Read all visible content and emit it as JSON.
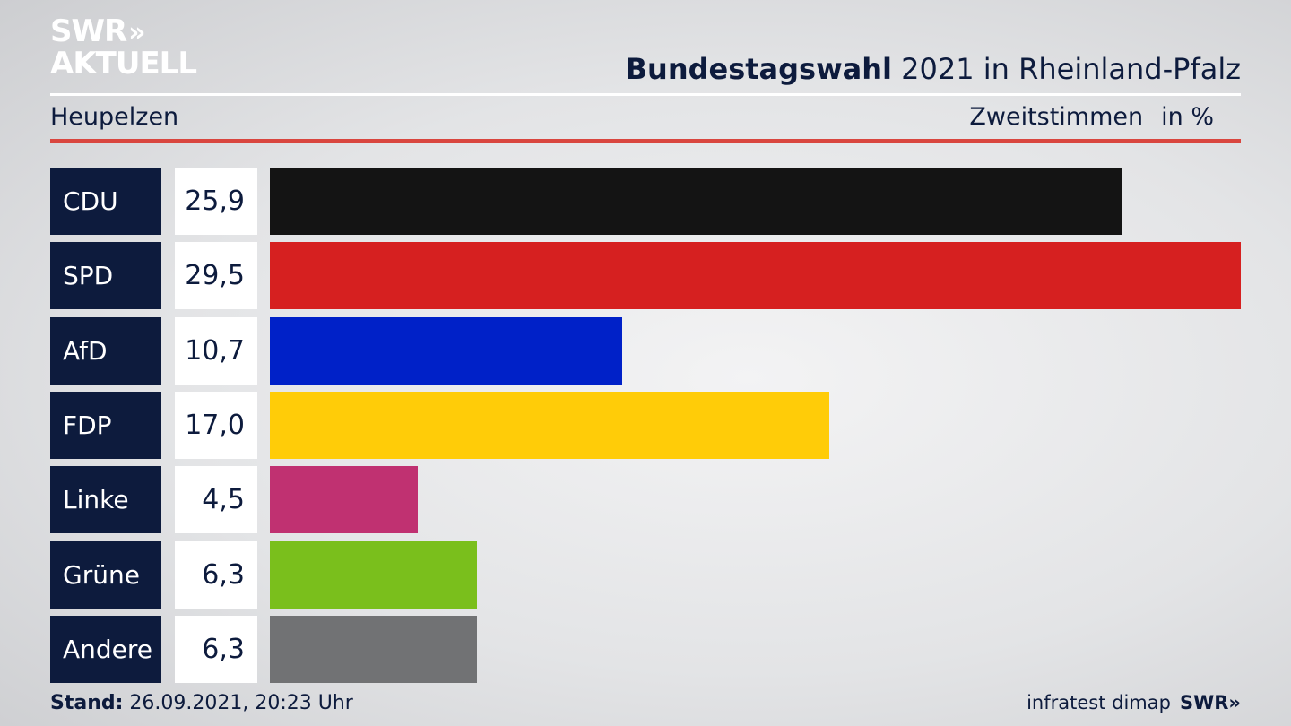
{
  "header": {
    "logo_line1": "SWR",
    "logo_chevrons": "»",
    "logo_line2": "AKTUELL",
    "title_bold": "Bundestagswahl",
    "title_rest": " 2021 in Rheinland-Pfalz",
    "location": "Heupelzen",
    "vote_type": "Zweitstimmen",
    "unit": "in %"
  },
  "chart_data": {
    "type": "bar",
    "orientation": "horizontal",
    "categories": [
      "CDU",
      "SPD",
      "AfD",
      "FDP",
      "Linke",
      "Grüne",
      "Andere"
    ],
    "values": [
      25.9,
      29.5,
      10.7,
      17.0,
      4.5,
      6.3,
      6.3
    ],
    "value_labels": [
      "25,9",
      "29,5",
      "10,7",
      "17,0",
      "4,5",
      "6,3",
      "6,3"
    ],
    "colors": [
      "#141414",
      "#d62020",
      "#0021c8",
      "#ffcc08",
      "#c03171",
      "#7abf1c",
      "#717274"
    ],
    "xlim": [
      0,
      29.5
    ]
  },
  "footer": {
    "stand_label": "Stand:",
    "stand_value": " 26.09.2021, 20:23 Uhr",
    "source": "infratest dimap",
    "brand": "SWR»"
  }
}
